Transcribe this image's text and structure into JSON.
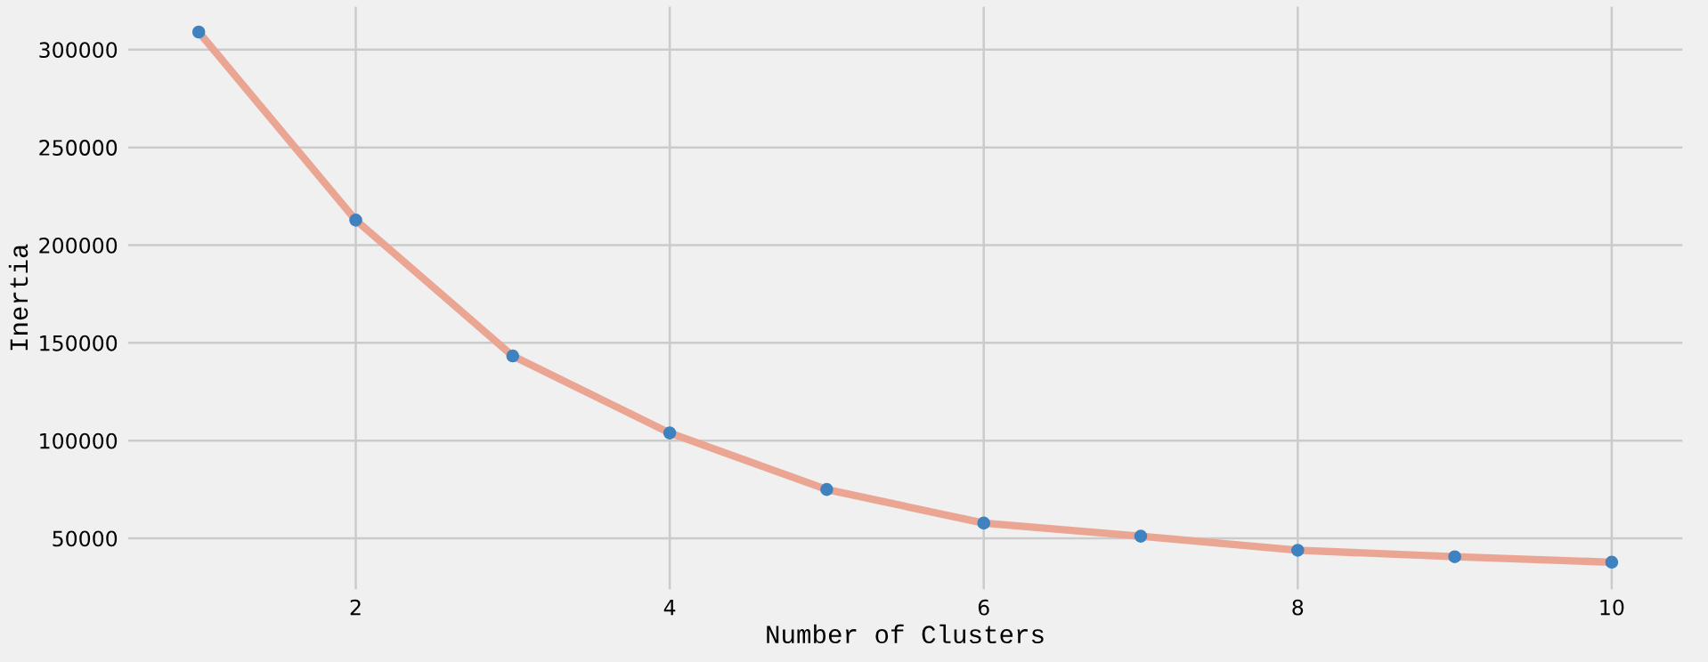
{
  "chart_data": {
    "type": "line",
    "xlabel": "Number of Clusters",
    "ylabel": "Inertia",
    "x": [
      1,
      2,
      3,
      4,
      5,
      6,
      7,
      8,
      9,
      10
    ],
    "series": [
      {
        "color": "#eba593",
        "values": [
          309000,
          212800,
          143300,
          103900,
          75000,
          57800,
          51100,
          43900,
          40600,
          37800
        ]
      },
      {
        "type": "scatter",
        "color": "#3f82c0",
        "values": [
          309000,
          212800,
          143300,
          103900,
          75000,
          57800,
          51100,
          43900,
          40600,
          37800
        ]
      }
    ],
    "xlim": [
      0.55,
      10.45
    ],
    "xticks": [
      2,
      4,
      6,
      8,
      10
    ],
    "ylim": [
      24000,
      322000
    ],
    "yticks": [
      50000,
      100000,
      150000,
      200000,
      250000,
      300000
    ],
    "grid": true,
    "legend": false
  }
}
